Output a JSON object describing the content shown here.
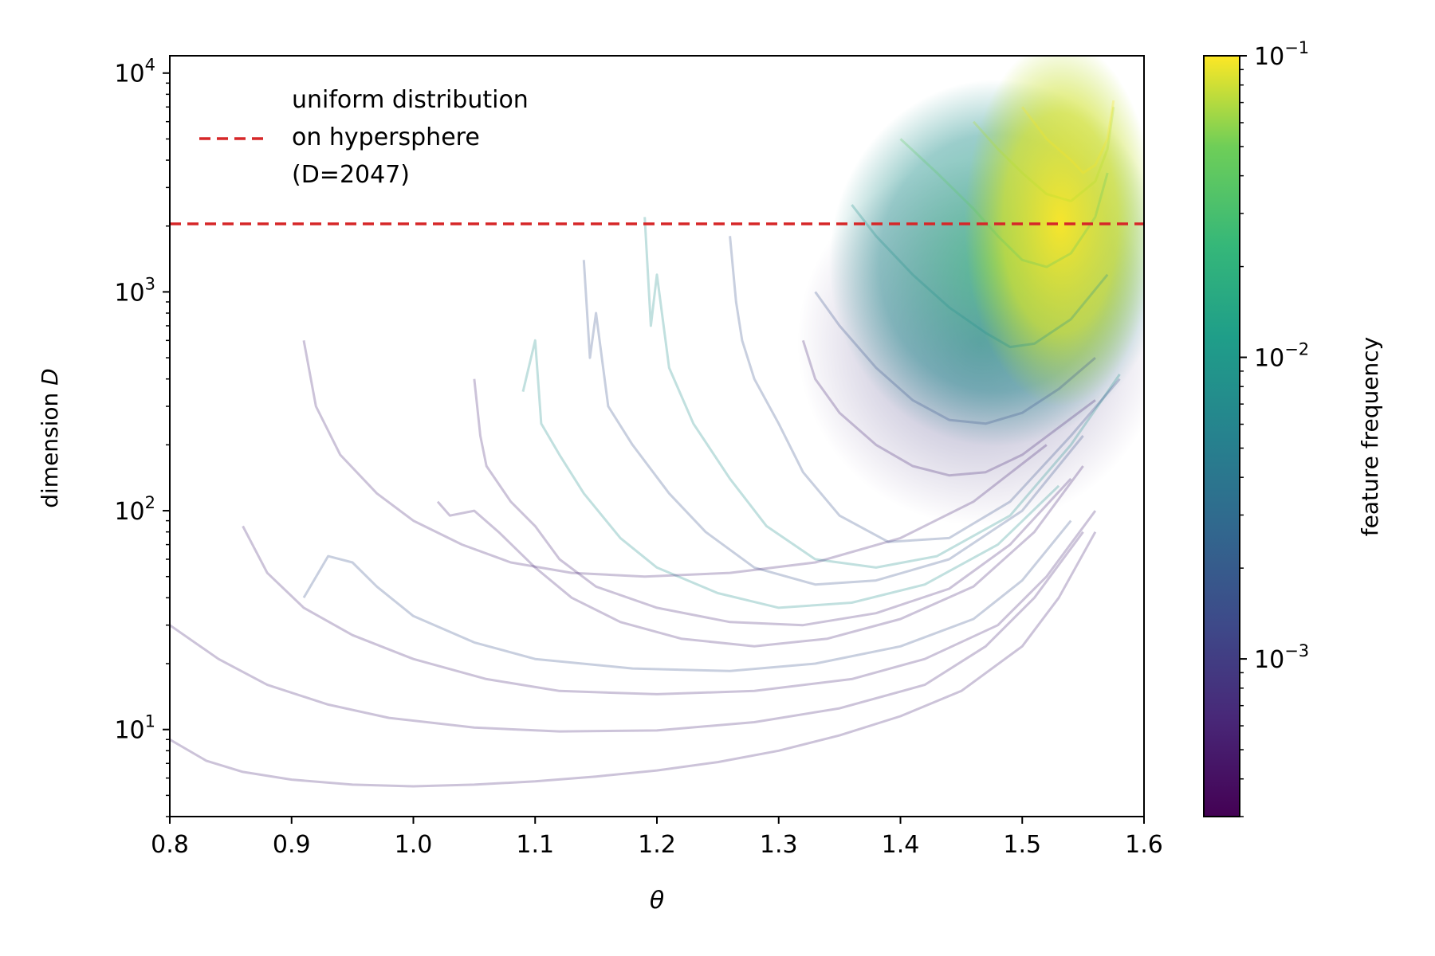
{
  "chart_data": {
    "type": "line",
    "title": "",
    "xlabel": "θ",
    "ylabel_prefix": "dimension ",
    "ylabel_var": "D",
    "xlim": [
      0.8,
      1.6
    ],
    "ylim": [
      4,
      12000
    ],
    "yscale": "log",
    "grid": false,
    "xticks": [
      0.8,
      0.9,
      1.0,
      1.1,
      1.2,
      1.3,
      1.4,
      1.5,
      1.6
    ],
    "xtick_labels": [
      "0.8",
      "0.9",
      "1.0",
      "1.1",
      "1.2",
      "1.3",
      "1.4",
      "1.5",
      "1.6"
    ],
    "yticks": [
      {
        "value": 10,
        "base": "10",
        "exp": "1"
      },
      {
        "value": 100,
        "base": "10",
        "exp": "2"
      },
      {
        "value": 1000,
        "base": "10",
        "exp": "3"
      },
      {
        "value": 10000,
        "base": "10",
        "exp": "4"
      }
    ],
    "reference_line": {
      "y": 2047,
      "color": "#d62728",
      "style": "dashed",
      "legend_lines": [
        "uniform distribution",
        "on hypersphere",
        "(D=2047)"
      ]
    },
    "legend_placement": "top-left",
    "colorbar": {
      "label": "feature frequency",
      "scale": "log",
      "range": [
        0.0003,
        0.1
      ],
      "colormap": "viridis",
      "ticks": [
        {
          "value": 0.1,
          "base": "10",
          "exp": "−1"
        },
        {
          "value": 0.01,
          "base": "10",
          "exp": "−2"
        },
        {
          "value": 0.001,
          "base": "10",
          "exp": "−3"
        }
      ]
    },
    "series": [
      {
        "color": "#482878",
        "points": [
          [
            0.8,
            9.0
          ],
          [
            0.83,
            7.2
          ],
          [
            0.86,
            6.4
          ],
          [
            0.9,
            5.9
          ],
          [
            0.95,
            5.6
          ],
          [
            1.0,
            5.5
          ],
          [
            1.05,
            5.6
          ],
          [
            1.1,
            5.8
          ],
          [
            1.15,
            6.1
          ],
          [
            1.2,
            6.5
          ],
          [
            1.25,
            7.1
          ],
          [
            1.3,
            8.0
          ],
          [
            1.35,
            9.4
          ],
          [
            1.4,
            11.5
          ],
          [
            1.45,
            15
          ],
          [
            1.5,
            24
          ],
          [
            1.53,
            40
          ],
          [
            1.56,
            80
          ]
        ]
      },
      {
        "color": "#482878",
        "points": [
          [
            0.8,
            30
          ],
          [
            0.84,
            21
          ],
          [
            0.88,
            16
          ],
          [
            0.93,
            13
          ],
          [
            0.98,
            11.3
          ],
          [
            1.05,
            10.2
          ],
          [
            1.12,
            9.8
          ],
          [
            1.2,
            9.9
          ],
          [
            1.28,
            10.8
          ],
          [
            1.35,
            12.5
          ],
          [
            1.42,
            16
          ],
          [
            1.47,
            24
          ],
          [
            1.51,
            40
          ],
          [
            1.55,
            80
          ]
        ]
      },
      {
        "color": "#482878",
        "points": [
          [
            0.86,
            85
          ],
          [
            0.88,
            52
          ],
          [
            0.91,
            36
          ],
          [
            0.95,
            27
          ],
          [
            1.0,
            21
          ],
          [
            1.06,
            17
          ],
          [
            1.12,
            15
          ],
          [
            1.2,
            14.5
          ],
          [
            1.28,
            15
          ],
          [
            1.36,
            17
          ],
          [
            1.42,
            21
          ],
          [
            1.48,
            30
          ],
          [
            1.52,
            50
          ],
          [
            1.56,
            100
          ]
        ]
      },
      {
        "color": "#3b528b",
        "points": [
          [
            0.91,
            40
          ],
          [
            0.93,
            62
          ],
          [
            0.95,
            58
          ],
          [
            0.97,
            45
          ],
          [
            1.0,
            33
          ],
          [
            1.05,
            25
          ],
          [
            1.1,
            21
          ],
          [
            1.18,
            19
          ],
          [
            1.26,
            18.5
          ],
          [
            1.33,
            20
          ],
          [
            1.4,
            24
          ],
          [
            1.46,
            32
          ],
          [
            1.5,
            48
          ],
          [
            1.54,
            90
          ]
        ]
      },
      {
        "color": "#482878",
        "points": [
          [
            1.02,
            110
          ],
          [
            1.03,
            95
          ],
          [
            1.05,
            100
          ],
          [
            1.07,
            80
          ],
          [
            1.1,
            55
          ],
          [
            1.13,
            40
          ],
          [
            1.17,
            31
          ],
          [
            1.22,
            26
          ],
          [
            1.28,
            24
          ],
          [
            1.34,
            26
          ],
          [
            1.4,
            32
          ],
          [
            1.46,
            45
          ],
          [
            1.51,
            80
          ],
          [
            1.55,
            160
          ]
        ]
      },
      {
        "color": "#482878",
        "points": [
          [
            1.05,
            400
          ],
          [
            1.055,
            220
          ],
          [
            1.06,
            160
          ],
          [
            1.08,
            110
          ],
          [
            1.1,
            85
          ],
          [
            1.12,
            60
          ],
          [
            1.15,
            45
          ],
          [
            1.2,
            36
          ],
          [
            1.26,
            31
          ],
          [
            1.32,
            30
          ],
          [
            1.38,
            34
          ],
          [
            1.44,
            44
          ],
          [
            1.49,
            70
          ],
          [
            1.54,
            140
          ]
        ]
      },
      {
        "color": "#21918c",
        "points": [
          [
            1.09,
            350
          ],
          [
            1.1,
            600
          ],
          [
            1.105,
            250
          ],
          [
            1.12,
            180
          ],
          [
            1.14,
            120
          ],
          [
            1.17,
            75
          ],
          [
            1.2,
            55
          ],
          [
            1.25,
            42
          ],
          [
            1.3,
            36
          ],
          [
            1.36,
            38
          ],
          [
            1.42,
            46
          ],
          [
            1.48,
            70
          ],
          [
            1.53,
            130
          ]
        ]
      },
      {
        "color": "#3b528b",
        "points": [
          [
            1.14,
            1400
          ],
          [
            1.145,
            500
          ],
          [
            1.15,
            800
          ],
          [
            1.16,
            300
          ],
          [
            1.18,
            200
          ],
          [
            1.21,
            120
          ],
          [
            1.24,
            80
          ],
          [
            1.28,
            55
          ],
          [
            1.33,
            46
          ],
          [
            1.38,
            48
          ],
          [
            1.44,
            60
          ],
          [
            1.5,
            100
          ],
          [
            1.55,
            220
          ]
        ]
      },
      {
        "color": "#21918c",
        "points": [
          [
            1.19,
            2200
          ],
          [
            1.195,
            700
          ],
          [
            1.2,
            1200
          ],
          [
            1.21,
            450
          ],
          [
            1.23,
            250
          ],
          [
            1.26,
            140
          ],
          [
            1.29,
            85
          ],
          [
            1.33,
            60
          ],
          [
            1.38,
            55
          ],
          [
            1.43,
            62
          ],
          [
            1.49,
            95
          ],
          [
            1.54,
            200
          ],
          [
            1.58,
            420
          ]
        ]
      },
      {
        "color": "#482878",
        "points": [
          [
            0.91,
            600
          ],
          [
            0.92,
            300
          ],
          [
            0.94,
            180
          ],
          [
            0.97,
            120
          ],
          [
            1.0,
            90
          ],
          [
            1.04,
            70
          ],
          [
            1.08,
            58
          ],
          [
            1.13,
            52
          ],
          [
            1.19,
            50
          ],
          [
            1.26,
            52
          ],
          [
            1.33,
            58
          ],
          [
            1.4,
            75
          ],
          [
            1.46,
            110
          ],
          [
            1.52,
            200
          ]
        ]
      },
      {
        "color": "#3b528b",
        "points": [
          [
            1.26,
            1800
          ],
          [
            1.265,
            900
          ],
          [
            1.27,
            600
          ],
          [
            1.28,
            400
          ],
          [
            1.3,
            250
          ],
          [
            1.32,
            150
          ],
          [
            1.35,
            95
          ],
          [
            1.39,
            72
          ],
          [
            1.44,
            75
          ],
          [
            1.49,
            110
          ],
          [
            1.54,
            220
          ],
          [
            1.58,
            400
          ]
        ]
      },
      {
        "color": "#482878",
        "points": [
          [
            1.32,
            600
          ],
          [
            1.33,
            400
          ],
          [
            1.35,
            280
          ],
          [
            1.38,
            200
          ],
          [
            1.41,
            160
          ],
          [
            1.44,
            145
          ],
          [
            1.47,
            150
          ],
          [
            1.5,
            180
          ],
          [
            1.53,
            240
          ],
          [
            1.56,
            320
          ]
        ]
      },
      {
        "color": "#3b528b",
        "points": [
          [
            1.33,
            1000
          ],
          [
            1.35,
            700
          ],
          [
            1.38,
            450
          ],
          [
            1.41,
            320
          ],
          [
            1.44,
            260
          ],
          [
            1.47,
            250
          ],
          [
            1.5,
            280
          ],
          [
            1.53,
            360
          ],
          [
            1.56,
            500
          ]
        ]
      },
      {
        "color": "#21918c",
        "points": [
          [
            1.36,
            2500
          ],
          [
            1.38,
            1800
          ],
          [
            1.41,
            1200
          ],
          [
            1.44,
            850
          ],
          [
            1.47,
            650
          ],
          [
            1.49,
            560
          ],
          [
            1.51,
            580
          ],
          [
            1.54,
            750
          ],
          [
            1.57,
            1200
          ]
        ]
      },
      {
        "color": "#5ec962",
        "points": [
          [
            1.4,
            5000
          ],
          [
            1.43,
            3500
          ],
          [
            1.46,
            2400
          ],
          [
            1.48,
            1800
          ],
          [
            1.5,
            1400
          ],
          [
            1.52,
            1300
          ],
          [
            1.54,
            1500
          ],
          [
            1.56,
            2200
          ],
          [
            1.57,
            3500
          ]
        ]
      },
      {
        "color": "#b5de2b",
        "points": [
          [
            1.46,
            6000
          ],
          [
            1.48,
            4500
          ],
          [
            1.5,
            3500
          ],
          [
            1.52,
            2800
          ],
          [
            1.54,
            2600
          ],
          [
            1.56,
            3200
          ],
          [
            1.57,
            4500
          ],
          [
            1.575,
            7000
          ]
        ]
      },
      {
        "color": "#fde725",
        "points": [
          [
            1.5,
            7000
          ],
          [
            1.52,
            5000
          ],
          [
            1.54,
            4000
          ],
          [
            1.55,
            3500
          ],
          [
            1.56,
            3800
          ],
          [
            1.57,
            5000
          ],
          [
            1.575,
            7500
          ]
        ]
      }
    ]
  }
}
